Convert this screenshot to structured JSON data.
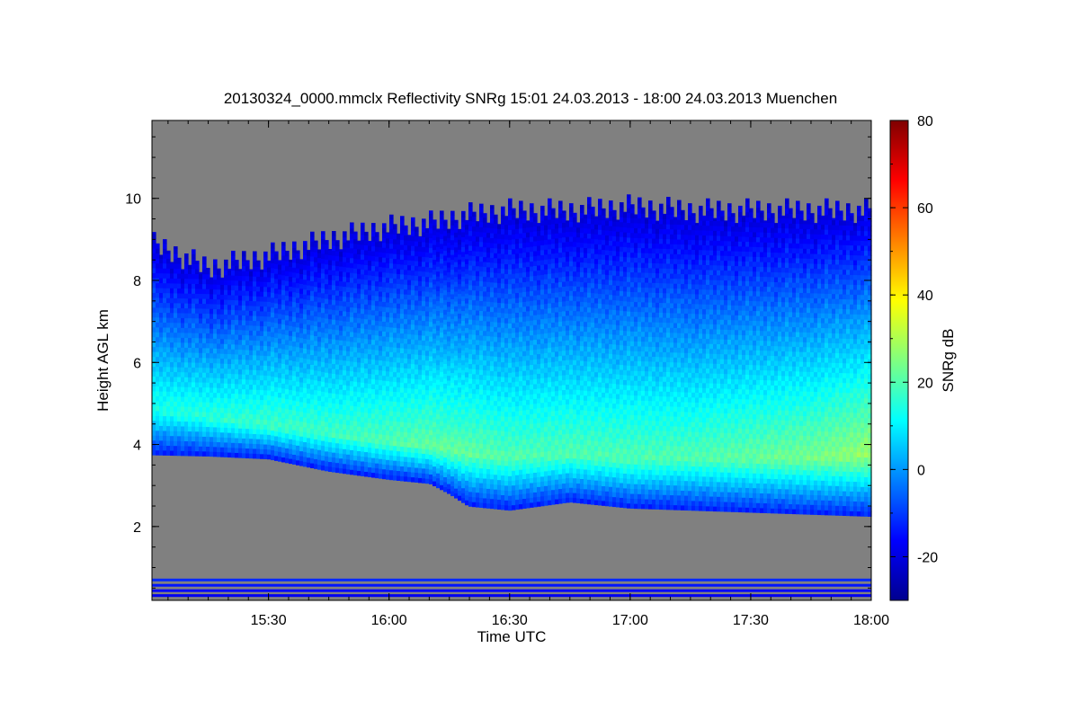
{
  "chart_data": {
    "type": "heatmap",
    "title": "20130324_0000.mmclx Reflectivity SNRg   15:01 24.03.2013 - 18:00 24.03.2013 Muenchen",
    "xlabel": "Time UTC",
    "ylabel": "Height AGL km",
    "colorbar_label": "SNRg dB",
    "x_ticks": [
      "15:30",
      "16:00",
      "16:30",
      "17:00",
      "17:30",
      "18:00"
    ],
    "x_tick_hours": [
      15.5,
      16.0,
      16.5,
      17.0,
      17.5,
      18.0
    ],
    "xlim_hours": [
      15.0167,
      18.0
    ],
    "y_ticks": [
      "2",
      "4",
      "6",
      "8",
      "10"
    ],
    "y_tick_values": [
      2,
      4,
      6,
      8,
      10
    ],
    "ylim": [
      0.2,
      11.9
    ],
    "colorbar_ticks": [
      "-20",
      "0",
      "20",
      "40",
      "60",
      "80"
    ],
    "colorbar_tick_values": [
      -20,
      0,
      20,
      40,
      60,
      80
    ],
    "colorbar_range": [
      -30,
      80
    ],
    "no_signal_color": "#808080",
    "colormap": [
      "#00008f",
      "#0000ff",
      "#0080ff",
      "#00ffff",
      "#80ff80",
      "#ffff00",
      "#ff8000",
      "#ff0000",
      "#800000"
    ],
    "cloud_profile": {
      "time_hours": [
        15.0167,
        15.25,
        15.5,
        15.75,
        16.0,
        16.17,
        16.25,
        16.33,
        16.5,
        16.75,
        17.0,
        17.25,
        17.5,
        17.75,
        18.0
      ],
      "cloud_base_km": [
        3.75,
        3.72,
        3.65,
        3.35,
        3.15,
        3.05,
        2.8,
        2.5,
        2.4,
        2.6,
        2.45,
        2.4,
        2.35,
        2.3,
        2.25
      ],
      "cloud_top_km": [
        9.2,
        8.6,
        8.9,
        9.3,
        9.6,
        9.7,
        9.8,
        9.9,
        10.0,
        10.0,
        10.1,
        10.0,
        10.0,
        10.0,
        10.0
      ],
      "peak_snr_height_km": [
        4.8,
        4.6,
        4.4,
        4.2,
        4.0,
        3.9,
        3.8,
        3.7,
        3.6,
        3.7,
        3.6,
        3.6,
        3.6,
        3.6,
        3.7
      ],
      "peak_snr_db": [
        14,
        16,
        18,
        18,
        20,
        22,
        22,
        22,
        20,
        20,
        20,
        20,
        22,
        24,
        28
      ]
    }
  }
}
